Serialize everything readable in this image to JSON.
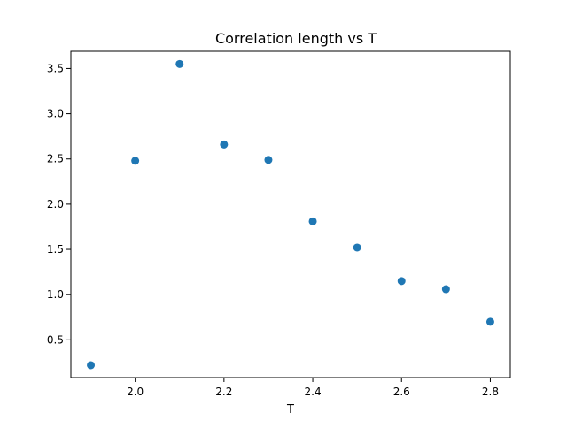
{
  "chart_data": {
    "type": "scatter",
    "title": "Correlation length vs T",
    "xlabel": "T",
    "ylabel": "",
    "xlim": [
      1.855,
      2.845
    ],
    "ylim": [
      0.083,
      3.69
    ],
    "xticks": [
      2.0,
      2.2,
      2.4,
      2.6,
      2.8
    ],
    "xtick_labels": [
      "2.0",
      "2.2",
      "2.4",
      "2.6",
      "2.8"
    ],
    "yticks": [
      0.5,
      1.0,
      1.5,
      2.0,
      2.5,
      3.0,
      3.5
    ],
    "ytick_labels": [
      "0.5",
      "1.0",
      "1.5",
      "2.0",
      "2.5",
      "3.0",
      "3.5"
    ],
    "grid": false,
    "marker_color": "#1f77b4",
    "series": [
      {
        "x": [
          1.9,
          2.0,
          2.1,
          2.2,
          2.3,
          2.4,
          2.5,
          2.6,
          2.7,
          2.8
        ],
        "y": [
          0.22,
          2.48,
          3.55,
          2.66,
          2.49,
          1.81,
          1.52,
          1.15,
          1.06,
          0.7
        ]
      }
    ]
  }
}
